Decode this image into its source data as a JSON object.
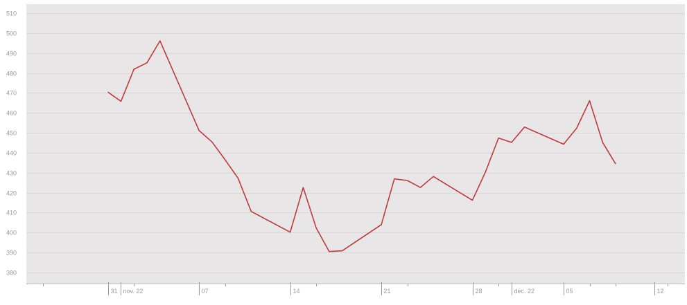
{
  "chart_data": {
    "type": "line",
    "title": "",
    "xlabel": "",
    "ylabel": "",
    "ylim": [
      375,
      512
    ],
    "yticks": [
      380,
      390,
      400,
      410,
      420,
      430,
      440,
      450,
      460,
      470,
      480,
      490,
      500,
      510
    ],
    "grid": true,
    "legend": "none",
    "x_tick_labels": [
      "31",
      "nov. 22",
      "07",
      "14",
      "21",
      "28",
      "déc. 22",
      "05",
      "12"
    ],
    "x_tick_dates": [
      "2022-10-31",
      "2022-11-01",
      "2022-11-07",
      "2022-11-14",
      "2022-11-21",
      "2022-11-28",
      "2022-12-01",
      "2022-12-05",
      "2022-12-12"
    ],
    "x_minor_tick_dates": [
      "2022-10-26",
      "2022-11-02",
      "2022-11-09",
      "2022-11-16",
      "2022-11-23",
      "2022-11-30",
      "2022-12-07",
      "2022-12-09",
      "2022-12-13"
    ],
    "x_range": [
      "2022-10-25",
      "2022-12-14"
    ],
    "series": [
      {
        "color": "#c0393b",
        "x": [
          "2022-10-31",
          "2022-11-01",
          "2022-11-02",
          "2022-11-03",
          "2022-11-04",
          "2022-11-07",
          "2022-11-08",
          "2022-11-09",
          "2022-11-10",
          "2022-11-11",
          "2022-11-14",
          "2022-11-15",
          "2022-11-16",
          "2022-11-17",
          "2022-11-18",
          "2022-11-21",
          "2022-11-22",
          "2022-11-23",
          "2022-11-24",
          "2022-11-25",
          "2022-11-28",
          "2022-11-29",
          "2022-11-30",
          "2022-12-01",
          "2022-12-02",
          "2022-12-05",
          "2022-12-06",
          "2022-12-07",
          "2022-12-08",
          "2022-12-09"
        ],
        "values": [
          470.4,
          465.8,
          481.9,
          485.1,
          496.1,
          451.2,
          445.4,
          436.5,
          427.2,
          410.6,
          400.2,
          422.6,
          402.3,
          390.5,
          390.9,
          404.0,
          426.9,
          426.1,
          422.6,
          428.1,
          416.2,
          430.4,
          447.4,
          445.2,
          452.9,
          444.3,
          452.3,
          466.1,
          445.2,
          434.4
        ]
      }
    ]
  }
}
